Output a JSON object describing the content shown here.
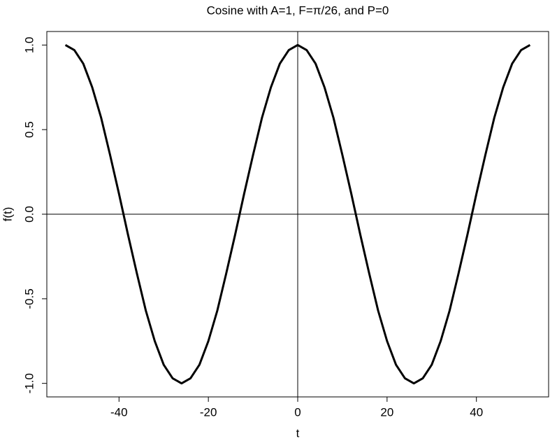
{
  "chart_data": {
    "type": "line",
    "title": "Cosine with A=1, F=π/26, and P=0",
    "xlabel": "t",
    "ylabel": "f(t)",
    "x": [
      -52,
      -50,
      -48,
      -46,
      -44,
      -42,
      -40,
      -38,
      -36,
      -34,
      -32,
      -30,
      -28,
      -26,
      -24,
      -22,
      -20,
      -18,
      -16,
      -14,
      -12,
      -10,
      -8,
      -6,
      -4,
      -2,
      0,
      2,
      4,
      6,
      8,
      10,
      12,
      14,
      16,
      18,
      20,
      22,
      24,
      26,
      28,
      30,
      32,
      34,
      36,
      38,
      40,
      42,
      44,
      46,
      48,
      50,
      52
    ],
    "values": [
      1,
      0.97,
      0.89,
      0.75,
      0.57,
      0.35,
      0.12,
      -0.12,
      -0.35,
      -0.57,
      -0.75,
      -0.89,
      -0.97,
      -1,
      -0.97,
      -0.89,
      -0.75,
      -0.57,
      -0.35,
      -0.12,
      0.12,
      0.35,
      0.57,
      0.75,
      0.89,
      0.97,
      1,
      0.97,
      0.89,
      0.75,
      0.57,
      0.35,
      0.12,
      -0.12,
      -0.35,
      -0.57,
      -0.75,
      -0.89,
      -0.97,
      -1,
      -0.97,
      -0.89,
      -0.75,
      -0.57,
      -0.35,
      -0.12,
      0.12,
      0.35,
      0.57,
      0.75,
      0.89,
      0.97,
      1
    ],
    "color": "#000000",
    "xlim": [
      -56.16,
      56.16
    ],
    "ylim": [
      -1.08,
      1.08
    ],
    "xticks": [
      -40,
      -20,
      0,
      20,
      40
    ],
    "yticks": [
      {
        "value": -1,
        "label": "-1.0"
      },
      {
        "value": -0.5,
        "label": "-0.5"
      },
      {
        "value": 0,
        "label": "0.0"
      },
      {
        "value": 0.5,
        "label": "0.5"
      },
      {
        "value": 1,
        "label": "1.0"
      }
    ],
    "hline": 0,
    "vline": 0
  }
}
